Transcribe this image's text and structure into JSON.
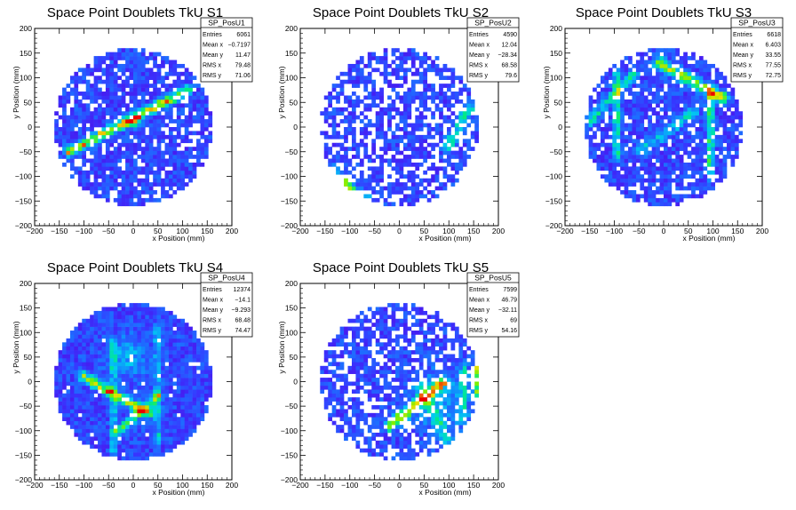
{
  "chart_data": [
    {
      "type": "heatmap",
      "title": "Space Point Doublets TkU S1",
      "xlabel": "x Position (mm)",
      "ylabel": "y Position (mm)",
      "xlim": [
        -200,
        200
      ],
      "ylim": [
        -200,
        200
      ],
      "xticks": [
        "−200",
        "−150",
        "−100",
        "−50",
        "0",
        "50",
        "100",
        "150",
        "200"
      ],
      "yticks": [
        "−200",
        "−150",
        "−100",
        "−50",
        "0",
        "50",
        "100",
        "150",
        "200"
      ],
      "stats": {
        "name": "SP_PosU1",
        "rows": [
          {
            "label": "Entries",
            "value": "6061"
          },
          {
            "label": "Mean x",
            "value": "−0.7197"
          },
          {
            "label": "Mean y",
            "value": "11.47"
          },
          {
            "label": "RMS x",
            "value": "79.48"
          },
          {
            "label": "RMS y",
            "value": "71.06"
          }
        ]
      },
      "features": [
        {
          "kind": "line",
          "x1": -130,
          "y1": -50,
          "x2": 110,
          "y2": 75,
          "amp": 0.6,
          "width": 7
        },
        {
          "kind": "spot",
          "x": 0,
          "y": 10,
          "amp": 0.3,
          "r": 10
        }
      ]
    },
    {
      "type": "heatmap",
      "title": "Space Point Doublets TkU S2",
      "xlabel": "x Position (mm)",
      "ylabel": "y Position (mm)",
      "xlim": [
        -200,
        200
      ],
      "ylim": [
        -200,
        200
      ],
      "xticks": [
        "−200",
        "−150",
        "−100",
        "−50",
        "0",
        "50",
        "100",
        "150",
        "200"
      ],
      "yticks": [
        "−200",
        "−150",
        "−100",
        "−50",
        "0",
        "50",
        "100",
        "150",
        "200"
      ],
      "stats": {
        "name": "SP_PosU2",
        "rows": [
          {
            "label": "Entries",
            "value": "4590"
          },
          {
            "label": "Mean x",
            "value": "12.04"
          },
          {
            "label": "Mean y",
            "value": "−28.34"
          },
          {
            "label": "RMS x",
            "value": "68.58"
          },
          {
            "label": "RMS y",
            "value": "79.6"
          }
        ]
      },
      "features": [
        {
          "kind": "line",
          "x1": -140,
          "y1": -90,
          "x2": -70,
          "y2": -150,
          "amp": 0.55,
          "width": 8
        },
        {
          "kind": "line",
          "x1": 100,
          "y1": -40,
          "x2": 140,
          "y2": 40,
          "amp": 0.35,
          "width": 8
        }
      ]
    },
    {
      "type": "heatmap",
      "title": "Space Point Doublets TkU S3",
      "xlabel": "x Position (mm)",
      "ylabel": "y Position (mm)",
      "xlim": [
        -200,
        200
      ],
      "ylim": [
        -200,
        200
      ],
      "xticks": [
        "−200",
        "−150",
        "−100",
        "−50",
        "0",
        "50",
        "100",
        "150",
        "200"
      ],
      "yticks": [
        "−200",
        "−150",
        "−100",
        "−50",
        "0",
        "50",
        "100",
        "150",
        "200"
      ],
      "stats": {
        "name": "SP_PosU3",
        "rows": [
          {
            "label": "Entries",
            "value": "6618"
          },
          {
            "label": "Mean x",
            "value": "6.403"
          },
          {
            "label": "Mean y",
            "value": "33.55"
          },
          {
            "label": "RMS x",
            "value": "77.55"
          },
          {
            "label": "RMS y",
            "value": "72.75"
          }
        ]
      },
      "features": [
        {
          "kind": "line",
          "x1": -10,
          "y1": 130,
          "x2": 120,
          "y2": 60,
          "amp": 0.55,
          "width": 8
        },
        {
          "kind": "line",
          "x1": 95,
          "y1": 70,
          "x2": 95,
          "y2": -100,
          "amp": 0.45,
          "width": 5
        },
        {
          "kind": "line",
          "x1": -95,
          "y1": 110,
          "x2": -95,
          "y2": -60,
          "amp": 0.4,
          "width": 5
        },
        {
          "kind": "line",
          "x1": -150,
          "y1": 10,
          "x2": -60,
          "y2": 110,
          "amp": 0.3,
          "width": 7
        },
        {
          "kind": "line",
          "x1": -50,
          "y1": -50,
          "x2": 60,
          "y2": 30,
          "amp": 0.25,
          "width": 8
        }
      ]
    },
    {
      "type": "heatmap",
      "title": "Space Point Doublets TkU S4",
      "xlabel": "x Position (mm)",
      "ylabel": "y Position (mm)",
      "xlim": [
        -200,
        200
      ],
      "ylim": [
        -200,
        200
      ],
      "xticks": [
        "−200",
        "−150",
        "−100",
        "−50",
        "0",
        "50",
        "100",
        "150",
        "200"
      ],
      "yticks": [
        "−200",
        "−150",
        "−100",
        "−50",
        "0",
        "50",
        "100",
        "150",
        "200"
      ],
      "stats": {
        "name": "SP_PosU4",
        "rows": [
          {
            "label": "Entries",
            "value": "12374"
          },
          {
            "label": "Mean x",
            "value": "−14.1"
          },
          {
            "label": "Mean y",
            "value": "−9.293"
          },
          {
            "label": "RMS x",
            "value": "68.48"
          },
          {
            "label": "RMS y",
            "value": "74.47"
          }
        ]
      },
      "features": [
        {
          "kind": "line",
          "x1": -100,
          "y1": 10,
          "x2": 30,
          "y2": -65,
          "amp": 0.6,
          "width": 7
        },
        {
          "kind": "line",
          "x1": -30,
          "y1": -100,
          "x2": 50,
          "y2": -30,
          "amp": 0.4,
          "width": 7
        },
        {
          "kind": "line",
          "x1": -40,
          "y1": 80,
          "x2": -40,
          "y2": -140,
          "amp": 0.25,
          "width": 5
        },
        {
          "kind": "line",
          "x1": 50,
          "y1": 110,
          "x2": 50,
          "y2": -120,
          "amp": 0.25,
          "width": 5
        },
        {
          "kind": "spot",
          "x": -10,
          "y": 50,
          "amp": 0.2,
          "r": 30
        }
      ]
    },
    {
      "type": "heatmap",
      "title": "Space Point Doublets TkU S5",
      "xlabel": "x Position (mm)",
      "ylabel": "y Position (mm)",
      "xlim": [
        -200,
        200
      ],
      "ylim": [
        -200,
        200
      ],
      "xticks": [
        "−200",
        "−150",
        "−100",
        "−50",
        "0",
        "50",
        "100",
        "150",
        "200"
      ],
      "yticks": [
        "−200",
        "−150",
        "−100",
        "−50",
        "0",
        "50",
        "100",
        "150",
        "200"
      ],
      "stats": {
        "name": "SP_PosU5",
        "rows": [
          {
            "label": "Entries",
            "value": "7599"
          },
          {
            "label": "Mean x",
            "value": "46.79"
          },
          {
            "label": "Mean y",
            "value": "−32.11"
          },
          {
            "label": "RMS x",
            "value": "69"
          },
          {
            "label": "RMS y",
            "value": "54.16"
          }
        ]
      },
      "features": [
        {
          "kind": "line",
          "x1": -20,
          "y1": -90,
          "x2": 90,
          "y2": 0,
          "amp": 0.6,
          "width": 7
        },
        {
          "kind": "line",
          "x1": 160,
          "y1": 30,
          "x2": 160,
          "y2": -50,
          "amp": 0.7,
          "width": 5
        },
        {
          "kind": "line",
          "x1": 130,
          "y1": 30,
          "x2": 130,
          "y2": -80,
          "amp": 0.3,
          "width": 5
        },
        {
          "kind": "line",
          "x1": 40,
          "y1": -10,
          "x2": 100,
          "y2": -120,
          "amp": 0.25,
          "width": 7
        },
        {
          "kind": "spot",
          "x": 80,
          "y": -40,
          "amp": 0.2,
          "r": 45
        }
      ]
    }
  ]
}
